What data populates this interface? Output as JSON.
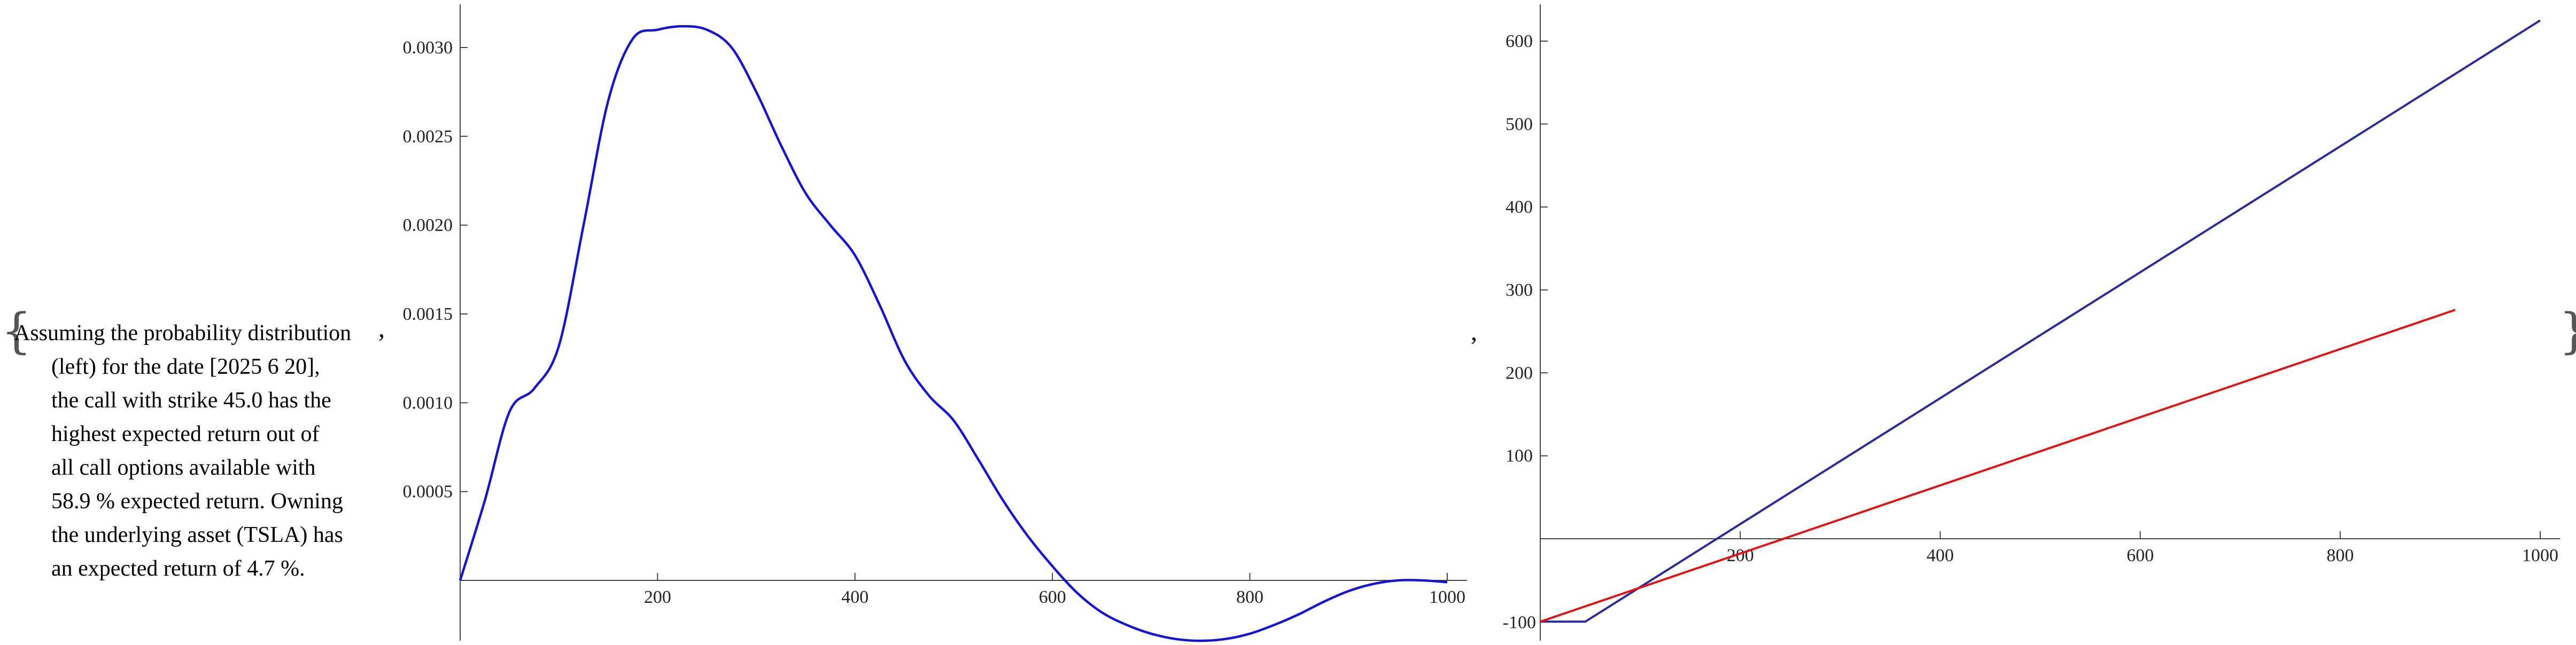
{
  "text_panel": {
    "open_brace": "{",
    "close_brace": "}",
    "separator_1": ",",
    "separator_2": ",",
    "lines": [
      "Assuming the probability distribution",
      "(left) for the date [2025 6 20],",
      "the call with strike 45.0 has the",
      "highest expected return out of",
      "all call options available with",
      "58.9 % expected return. Owning",
      "the underlying asset (TSLA) has",
      "an expected return of 4.7 %."
    ]
  },
  "chart_data": [
    {
      "type": "line",
      "title": "",
      "xlabel": "",
      "ylabel": "",
      "xlim": [
        0,
        1020
      ],
      "ylim": [
        -0.00045,
        0.0032
      ],
      "x_ticks": [
        200,
        400,
        600,
        800,
        1000
      ],
      "x_tick_labels": [
        "200",
        "400",
        "600",
        "800",
        "1000"
      ],
      "y_ticks": [
        0.0005,
        0.001,
        0.0015,
        0.002,
        0.0025,
        0.003
      ],
      "y_tick_labels": [
        "0.0005",
        "0.0010",
        "0.0015",
        "0.0020",
        "0.0025",
        "0.0030"
      ],
      "grid": false,
      "color": "#1414d2",
      "series": [
        {
          "x": [
            0,
            25,
            50,
            75,
            100,
            125,
            150,
            175,
            200,
            225,
            250,
            275,
            300,
            325,
            350,
            375,
            400,
            425,
            450,
            475,
            500,
            525,
            550,
            575,
            600,
            625,
            650,
            675,
            700,
            725,
            750,
            775,
            800,
            825,
            850,
            875,
            900,
            925,
            950,
            975,
            1000
          ],
          "values": [
            0.0,
            0.00045,
            0.00095,
            0.00108,
            0.00132,
            0.002,
            0.0027,
            0.00305,
            0.0031,
            0.00312,
            0.0031,
            0.003,
            0.00275,
            0.00245,
            0.00218,
            0.002,
            0.00183,
            0.00155,
            0.00124,
            0.00104,
            0.0009,
            0.00068,
            0.00045,
            0.00025,
            8e-05,
            -7e-05,
            -0.00018,
            -0.00025,
            -0.0003,
            -0.00033,
            -0.00034,
            -0.00033,
            -0.0003,
            -0.00025,
            -0.00019,
            -0.00012,
            -6e-05,
            -2e-05,
            0.0,
            0.0,
            -1e-05
          ]
        }
      ]
    },
    {
      "type": "line",
      "title": "",
      "xlabel": "",
      "ylabel": "",
      "xlim": [
        0,
        1020
      ],
      "ylim": [
        -120,
        650
      ],
      "x_ticks": [
        200,
        400,
        600,
        800,
        1000
      ],
      "x_tick_labels": [
        "200",
        "400",
        "600",
        "800",
        "1000"
      ],
      "y_ticks": [
        100,
        200,
        300,
        400,
        500,
        600
      ],
      "y_tick_labels": [
        "100",
        "200",
        "300",
        "400",
        "500",
        "600"
      ],
      "extra_y_tick_label": "-100",
      "grid": false,
      "series": [
        {
          "color": "#2a2aa0",
          "x": [
            0,
            45,
            1000
          ],
          "values": [
            -100,
            -100,
            625
          ]
        },
        {
          "color": "#e01414",
          "x": [
            0,
            915
          ],
          "values": [
            -100,
            276
          ]
        }
      ]
    }
  ]
}
